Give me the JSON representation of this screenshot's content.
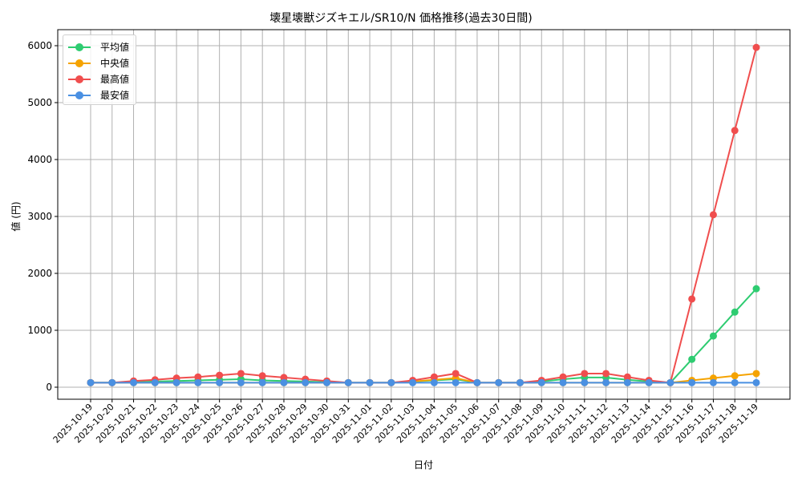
{
  "chart_data": {
    "type": "line",
    "title": "壊星壊獣ジズキエル/SR10/N 価格推移(過去30日間)",
    "xlabel": "日付",
    "ylabel": "値 (円)",
    "ylim": [
      -200,
      6300
    ],
    "yticks": [
      0,
      1000,
      2000,
      3000,
      4000,
      5000,
      6000
    ],
    "grid": true,
    "legend_position": "upper left",
    "x": [
      "2025-10-19",
      "2025-10-20",
      "2025-10-21",
      "2025-10-22",
      "2025-10-23",
      "2025-10-24",
      "2025-10-25",
      "2025-10-26",
      "2025-10-27",
      "2025-10-28",
      "2025-10-29",
      "2025-10-30",
      "2025-10-31",
      "2025-11-01",
      "2025-11-02",
      "2025-11-03",
      "2025-11-04",
      "2025-11-05",
      "2025-11-06",
      "2025-11-07",
      "2025-11-08",
      "2025-11-09",
      "2025-11-10",
      "2025-11-11",
      "2025-11-12",
      "2025-11-13",
      "2025-11-14",
      "2025-11-15",
      "2025-11-16",
      "2025-11-17",
      "2025-11-18",
      "2025-11-19"
    ],
    "series": [
      {
        "name": "平均値",
        "color": "#2ecc71",
        "values": [
          80,
          80,
          90,
          100,
          110,
          120,
          130,
          140,
          120,
          110,
          100,
          90,
          80,
          80,
          80,
          100,
          120,
          140,
          80,
          80,
          80,
          100,
          140,
          170,
          170,
          130,
          100,
          80,
          490,
          900,
          1320,
          1730
        ]
      },
      {
        "name": "中央値",
        "color": "#f5a300",
        "values": [
          80,
          80,
          80,
          80,
          80,
          80,
          80,
          80,
          80,
          80,
          80,
          80,
          80,
          80,
          80,
          100,
          130,
          160,
          80,
          80,
          80,
          80,
          80,
          80,
          80,
          80,
          80,
          80,
          120,
          160,
          200,
          240
        ]
      },
      {
        "name": "最高値",
        "color": "#f04e4e",
        "values": [
          80,
          80,
          110,
          130,
          160,
          180,
          210,
          240,
          200,
          170,
          140,
          110,
          80,
          80,
          80,
          120,
          180,
          240,
          80,
          80,
          80,
          120,
          180,
          240,
          240,
          180,
          120,
          80,
          1550,
          3030,
          4510,
          5970
        ]
      },
      {
        "name": "最安値",
        "color": "#4a90e2",
        "values": [
          80,
          80,
          80,
          80,
          80,
          80,
          80,
          80,
          80,
          80,
          80,
          80,
          80,
          80,
          80,
          80,
          80,
          80,
          80,
          80,
          80,
          80,
          80,
          80,
          80,
          80,
          80,
          80,
          80,
          80,
          80,
          80
        ]
      }
    ]
  },
  "legend": {
    "items": [
      {
        "label": "平均値",
        "color": "#2ecc71"
      },
      {
        "label": "中央値",
        "color": "#f5a300"
      },
      {
        "label": "最高値",
        "color": "#f04e4e"
      },
      {
        "label": "最安値",
        "color": "#4a90e2"
      }
    ]
  }
}
